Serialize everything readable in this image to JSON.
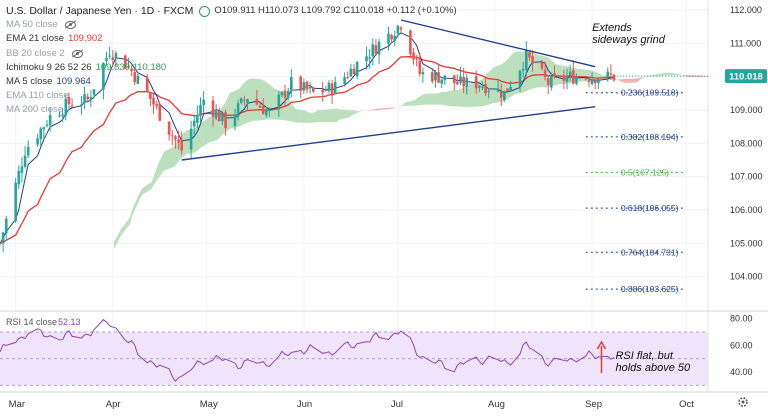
{
  "header": {
    "symbol": "U.S. Dollar / Japanese Yen · 1D · FXCM",
    "ohlc": "O109.911 H110.073 L109.792 C110.018 +0.112 (+0.10%)"
  },
  "indicators": [
    {
      "label": "MA 50 close",
      "value": "",
      "value_color": "#9aa0a6",
      "dim": true,
      "icon": "hidden-eye-icon"
    },
    {
      "label": "EMA 21 close",
      "value": "109.902",
      "value_color": "#e53935",
      "dim": false,
      "icon": ""
    },
    {
      "label": "BB 20 close 2",
      "value": "",
      "value_color": "#9aa0a6",
      "dim": true,
      "icon": "hidden-eye-icon"
    },
    {
      "label": "Ichimoku 9 26 52 26",
      "value": "109.839  110.180",
      "value_color": "#2e9e57",
      "dim": false,
      "icon": ""
    },
    {
      "label": "MA 5 close",
      "value": "109.964",
      "value_color": "#1f3f8f",
      "dim": false,
      "icon": ""
    },
    {
      "label": "EMA 110 close",
      "value": "",
      "value_color": "#9aa0a6",
      "dim": true,
      "icon": ""
    },
    {
      "label": "MA 200 close",
      "value": "",
      "value_color": "#9aa0a6",
      "dim": true,
      "icon": ""
    }
  ],
  "annotations": {
    "extends": [
      "Extends",
      "sideways grind"
    ],
    "rsi_note": [
      "RSI flat, but",
      "holds above 50"
    ]
  },
  "price_axis": {
    "ticks": [
      "112.000",
      "111.000",
      "110.000",
      "109.000",
      "108.000",
      "107.000",
      "106.000",
      "105.000",
      "104.000"
    ],
    "last_price": "110.018"
  },
  "rsi": {
    "label": "RSI 14 close",
    "value": "52.13",
    "ticks": [
      "80.00",
      "60.00",
      "40.00"
    ]
  },
  "time_axis": [
    "Mar",
    "Apr",
    "May",
    "Jun",
    "Jul",
    "Aug",
    "Sep",
    "Oct"
  ],
  "fib_levels": [
    {
      "ratio": "0.236",
      "price": "109.518",
      "color": "#1f3f8f"
    },
    {
      "ratio": "0.382",
      "price": "108.194",
      "color": "#1f3f8f"
    },
    {
      "ratio": "0.5",
      "price": "107.125",
      "color": "#4caf50"
    },
    {
      "ratio": "0.618",
      "price": "106.055",
      "color": "#1f3f8f"
    },
    {
      "ratio": "0.764",
      "price": "104.731",
      "color": "#1f3f8f"
    },
    {
      "ratio": "0.886",
      "price": "103.625",
      "color": "#1f3f8f"
    }
  ],
  "fib_texts": [
    "0.236(109.518)",
    "0.382(108.194)",
    "0.5(107.125)",
    "0.618(106.055)",
    "0.764(104.731)",
    "0.886(103.625)"
  ],
  "settings_icon": "gear-icon",
  "colors": {
    "up": "#26a69a",
    "down": "#ef5350",
    "ema21": "#e53935",
    "ma5": "#1f3f8f",
    "cloud_green": "#a5d6a7",
    "cloud_red": "#ef9a9a",
    "trendline": "#1f3f8f",
    "rsi_line": "#8e44ad",
    "rsi_band": "#f0e4fb"
  },
  "chart_data": {
    "type": "candlestick",
    "title": "U.S. Dollar / Japanese Yen · 1D · FXCM",
    "price_range": [
      103.0,
      112.3
    ],
    "rsi_range": [
      25,
      85
    ],
    "x_start": "2021-02-24",
    "x_end": "2021-10-08",
    "month_ticks": [
      {
        "label": "Mar",
        "date": "2021-03-01"
      },
      {
        "label": "Apr",
        "date": "2021-04-01"
      },
      {
        "label": "May",
        "date": "2021-05-01"
      },
      {
        "label": "Jun",
        "date": "2021-06-01"
      },
      {
        "label": "Jul",
        "date": "2021-07-01"
      },
      {
        "label": "Aug",
        "date": "2021-08-01"
      },
      {
        "label": "Sep",
        "date": "2021-09-01"
      },
      {
        "label": "Oct",
        "date": "2021-10-01"
      }
    ],
    "close_series": [
      {
        "date": "2021-02-24",
        "close": 105.0
      },
      {
        "date": "2021-03-04",
        "close": 107.8
      },
      {
        "date": "2021-03-12",
        "close": 108.8
      },
      {
        "date": "2021-03-18",
        "close": 109.2
      },
      {
        "date": "2021-03-24",
        "close": 109.3
      },
      {
        "date": "2021-03-31",
        "close": 110.8
      },
      {
        "date": "2021-04-06",
        "close": 110.3
      },
      {
        "date": "2021-04-12",
        "close": 109.5
      },
      {
        "date": "2021-04-19",
        "close": 108.4
      },
      {
        "date": "2021-04-23",
        "close": 107.8
      },
      {
        "date": "2021-04-30",
        "close": 109.3
      },
      {
        "date": "2021-05-07",
        "close": 108.6
      },
      {
        "date": "2021-05-14",
        "close": 109.4
      },
      {
        "date": "2021-05-21",
        "close": 108.9
      },
      {
        "date": "2021-05-28",
        "close": 109.8
      },
      {
        "date": "2021-06-04",
        "close": 109.5
      },
      {
        "date": "2021-06-11",
        "close": 109.7
      },
      {
        "date": "2021-06-17",
        "close": 110.3
      },
      {
        "date": "2021-06-24",
        "close": 110.9
      },
      {
        "date": "2021-07-02",
        "close": 111.6
      },
      {
        "date": "2021-07-08",
        "close": 110.1
      },
      {
        "date": "2021-07-14",
        "close": 110.0
      },
      {
        "date": "2021-07-20",
        "close": 109.8
      },
      {
        "date": "2021-07-27",
        "close": 109.8
      },
      {
        "date": "2021-08-04",
        "close": 109.5
      },
      {
        "date": "2021-08-11",
        "close": 110.6
      },
      {
        "date": "2021-08-18",
        "close": 109.8
      },
      {
        "date": "2021-08-25",
        "close": 110.0
      },
      {
        "date": "2021-09-01",
        "close": 110.0
      },
      {
        "date": "2021-09-08",
        "close": 110.0
      }
    ],
    "trendlines": [
      {
        "name": "upper",
        "from": {
          "date": "2021-07-02",
          "price": 111.7
        },
        "to": {
          "date": "2021-09-02",
          "price": 110.3
        }
      },
      {
        "name": "lower",
        "from": {
          "date": "2021-04-23",
          "price": 107.5
        },
        "to": {
          "date": "2021-09-02",
          "price": 109.1
        }
      }
    ],
    "rsi_series": [
      {
        "date": "2021-02-24",
        "value": 55
      },
      {
        "date": "2021-03-05",
        "value": 70
      },
      {
        "date": "2021-03-15",
        "value": 66
      },
      {
        "date": "2021-03-25",
        "value": 69
      },
      {
        "date": "2021-03-31",
        "value": 78
      },
      {
        "date": "2021-04-06",
        "value": 62
      },
      {
        "date": "2021-04-15",
        "value": 44
      },
      {
        "date": "2021-04-23",
        "value": 35
      },
      {
        "date": "2021-05-01",
        "value": 52
      },
      {
        "date": "2021-05-10",
        "value": 46
      },
      {
        "date": "2021-05-20",
        "value": 47
      },
      {
        "date": "2021-05-31",
        "value": 57
      },
      {
        "date": "2021-06-10",
        "value": 55
      },
      {
        "date": "2021-06-20",
        "value": 63
      },
      {
        "date": "2021-07-02",
        "value": 70
      },
      {
        "date": "2021-07-10",
        "value": 48
      },
      {
        "date": "2021-07-19",
        "value": 44
      },
      {
        "date": "2021-07-28",
        "value": 50
      },
      {
        "date": "2021-08-05",
        "value": 47
      },
      {
        "date": "2021-08-11",
        "value": 60
      },
      {
        "date": "2021-08-19",
        "value": 46
      },
      {
        "date": "2021-08-27",
        "value": 51
      },
      {
        "date": "2021-09-03",
        "value": 52
      }
    ]
  }
}
